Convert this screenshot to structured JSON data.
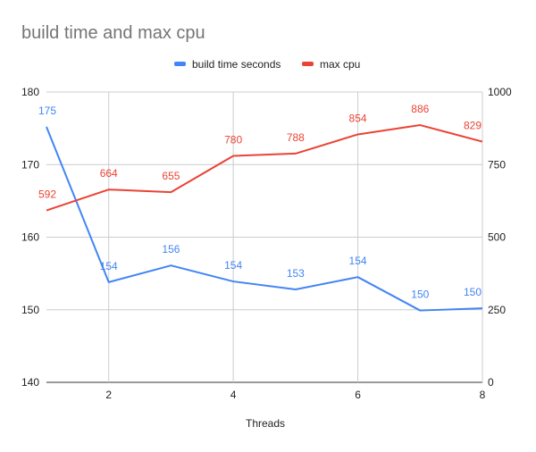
{
  "chart_data": {
    "type": "line",
    "title": "build time and max cpu",
    "xlabel": "Threads",
    "x": [
      1,
      2,
      3,
      4,
      5,
      6,
      7,
      8
    ],
    "x_ticks": [
      2,
      4,
      6,
      8
    ],
    "xlim": [
      1,
      8
    ],
    "y_left": {
      "ylim": [
        140,
        180
      ],
      "ticks": [
        140,
        150,
        160,
        170,
        180
      ]
    },
    "y_right": {
      "ylim": [
        0,
        1000
      ],
      "ticks": [
        0,
        250,
        500,
        750,
        1000
      ]
    },
    "grid": true,
    "legend_position": "top",
    "series": [
      {
        "name": "build time seconds",
        "axis": "left",
        "color": "#4285f4",
        "values": [
          175.2,
          153.8,
          156.1,
          153.9,
          152.8,
          154.5,
          149.9,
          150.2
        ],
        "labels": [
          "175",
          "154",
          "156",
          "154",
          "153",
          "154",
          "150",
          "150"
        ]
      },
      {
        "name": "max cpu",
        "axis": "right",
        "color": "#ea4335",
        "values": [
          592,
          664,
          655,
          780,
          788,
          854,
          886,
          829
        ],
        "labels": [
          "592",
          "664",
          "655",
          "780",
          "788",
          "854",
          "886",
          "829"
        ]
      }
    ]
  }
}
